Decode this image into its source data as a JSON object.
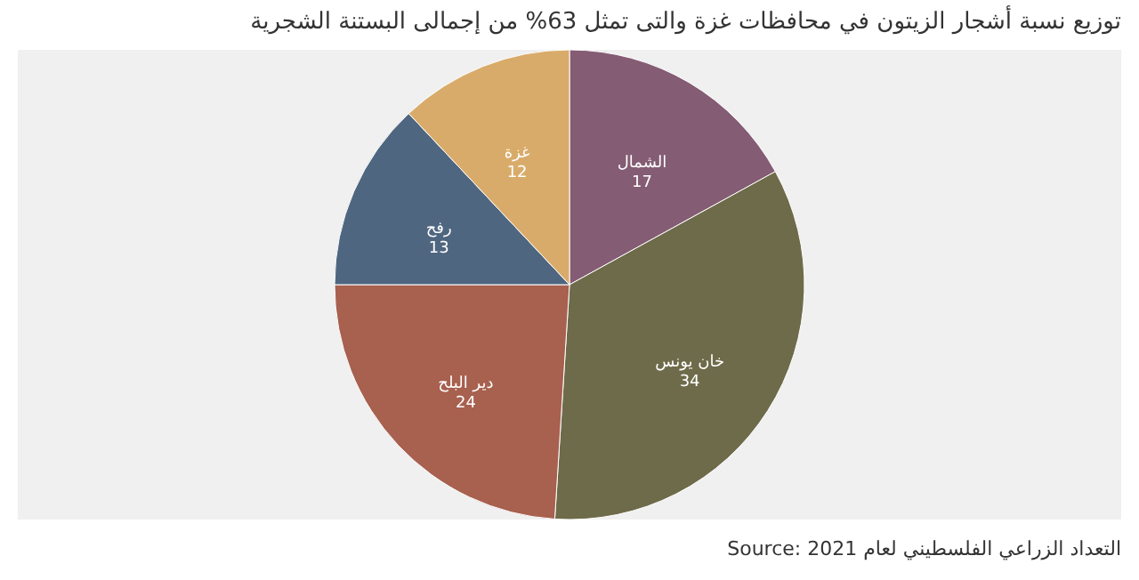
{
  "chart_data": {
    "type": "pie",
    "title": "توزيع نسبة أشجار الزيتون في محافظات غزة والتى تمثل 63% من إجمالى البستنة الشجرية",
    "categories": [
      "الشمال",
      "خان يونس",
      "دير البلح",
      "رفح",
      "غزة"
    ],
    "values": [
      17,
      34,
      24,
      13,
      12
    ],
    "colors": [
      "#845c74",
      "#6e6b4a",
      "#a8604f",
      "#4f6680",
      "#d9ab6a"
    ],
    "data_labels": true,
    "annotations": [
      "Source: التعداد الزراعي الفلسطيني لعام 2021"
    ]
  }
}
